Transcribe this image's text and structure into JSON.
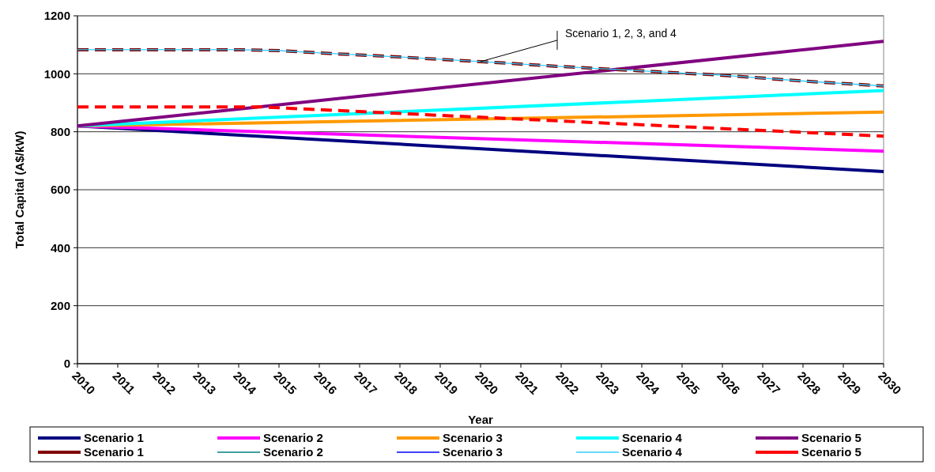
{
  "chart_data": {
    "type": "line",
    "xlabel": "Year",
    "ylabel": "Total Capital (A$/kW)",
    "xlim": [
      2010,
      2030
    ],
    "xticks": [
      2010,
      2011,
      2012,
      2013,
      2014,
      2015,
      2016,
      2017,
      2018,
      2019,
      2020,
      2021,
      2022,
      2023,
      2024,
      2025,
      2026,
      2027,
      2028,
      2029,
      2030
    ],
    "ylim": [
      0,
      1200
    ],
    "yticks": [
      0,
      200,
      400,
      600,
      800,
      1000,
      1200
    ],
    "grid": "y",
    "legend": "bottom",
    "marker": "none",
    "annotations": [
      {
        "text": "Scenario 1, 2, 3, and 4",
        "x": 2020,
        "y": 1042
      }
    ],
    "series": [
      {
        "name": "Scenario 1",
        "color": "#000080",
        "line_style": "solid",
        "x": [
          2010,
          2030
        ],
        "values": [
          820,
          663
        ]
      },
      {
        "name": "Scenario 2",
        "color": "#ff00ff",
        "line_style": "solid",
        "x": [
          2010,
          2030
        ],
        "values": [
          820,
          733
        ]
      },
      {
        "name": "Scenario 3",
        "color": "#ff9900",
        "line_style": "solid",
        "x": [
          2010,
          2030
        ],
        "values": [
          820,
          868
        ]
      },
      {
        "name": "Scenario 4",
        "color": "#00ffff",
        "line_style": "solid",
        "x": [
          2010,
          2030
        ],
        "values": [
          820,
          942
        ]
      },
      {
        "name": "Scenario 5",
        "color": "#800080",
        "line_style": "solid",
        "x": [
          2010,
          2030
        ],
        "values": [
          820,
          1112
        ]
      },
      {
        "name": "Scenario 1",
        "color": "#800000",
        "line_style": "dashed",
        "x": [
          2010,
          2014,
          2015,
          2016,
          2018,
          2020,
          2022,
          2024,
          2026,
          2028,
          2030
        ],
        "values": [
          1083,
          1083,
          1080,
          1072,
          1058,
          1042,
          1025,
          1010,
          995,
          975,
          958
        ]
      },
      {
        "name": "Scenario 2",
        "color": "#008080",
        "line_style": "solid"
      },
      {
        "name": "Scenario 3",
        "color": "#0000ff",
        "line_style": "solid"
      },
      {
        "name": "Scenario 4",
        "color": "#33ccff",
        "line_style": "solid",
        "x": [
          2010,
          2014,
          2015,
          2016,
          2018,
          2020,
          2022,
          2024,
          2026,
          2028,
          2030
        ],
        "values": [
          1083,
          1083,
          1080,
          1072,
          1058,
          1042,
          1025,
          1010,
          995,
          975,
          958
        ]
      },
      {
        "name": "Scenario 5",
        "color": "#ff0000",
        "line_style": "dashed",
        "x": [
          2010,
          2014.5,
          2030
        ],
        "values": [
          886,
          886,
          785
        ]
      }
    ]
  }
}
